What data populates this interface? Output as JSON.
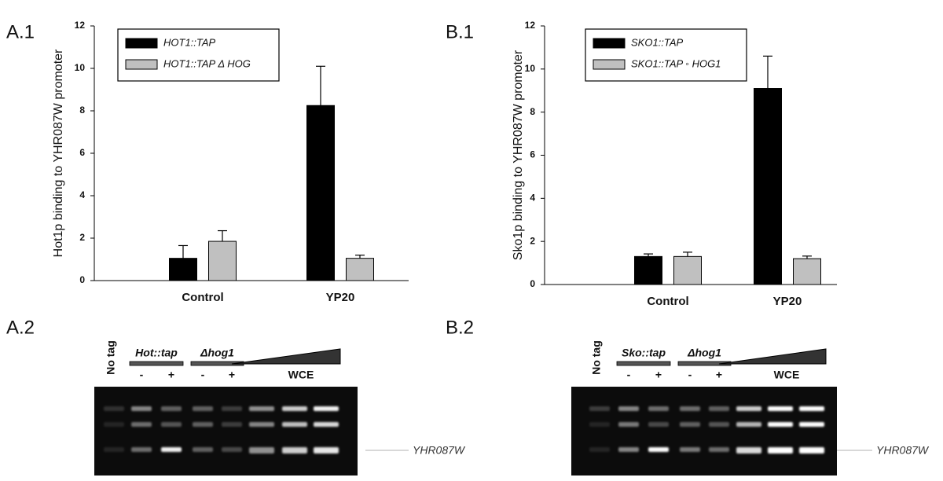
{
  "chart_data": [
    {
      "type": "bar",
      "y_label": "Hot1p binding to YHR087W promoter",
      "categories": [
        "Control",
        "YP20"
      ],
      "series": [
        {
          "name": "HOT1::TAP",
          "color": "#000000",
          "values": [
            1.05,
            8.25
          ],
          "errors": [
            0.6,
            1.85
          ]
        },
        {
          "name": "HOT1::TAP Δ HOG",
          "color": "#c0c0c0",
          "values": [
            1.85,
            1.05
          ],
          "errors": [
            0.5,
            0.15
          ]
        }
      ],
      "ylim": [
        0,
        12
      ],
      "yticks": [
        0,
        2,
        4,
        6,
        8,
        10,
        12
      ],
      "legend": "upper left"
    },
    {
      "type": "bar",
      "y_label": "Sko1p binding to YHR087W promoter",
      "categories": [
        "Control",
        "YP20"
      ],
      "series": [
        {
          "name": "SKO1::TAP",
          "color": "#000000",
          "values": [
            1.3,
            9.1
          ],
          "errors": [
            0.12,
            1.5
          ]
        },
        {
          "name": "SKO1::TAP ◦ HOG1",
          "color": "#c0c0c0",
          "values": [
            1.3,
            1.2
          ],
          "errors": [
            0.2,
            0.12
          ]
        }
      ],
      "ylim": [
        0,
        12
      ],
      "yticks": [
        0,
        2,
        4,
        6,
        8,
        10,
        12
      ],
      "legend": "upper left"
    }
  ],
  "panels": [
    "A.1",
    "B.1",
    "A.2",
    "B.2"
  ],
  "gels": [
    {
      "control": "No tag",
      "strain": "Hot::tap",
      "mutant": "Δhog1",
      "signs": [
        "-",
        "+",
        "-",
        "+"
      ],
      "ladder": "WCE",
      "band": "YHR087W"
    },
    {
      "control": "No tag",
      "strain": "Sko::tap",
      "mutant": "Δhog1",
      "signs": [
        "-",
        "+",
        "-",
        "+"
      ],
      "ladder": "WCE",
      "band": "YHR087W"
    }
  ]
}
